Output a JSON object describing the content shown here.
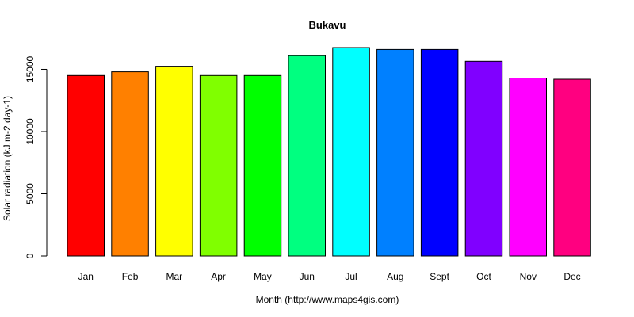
{
  "chart_data": {
    "type": "bar",
    "title": "Bukavu",
    "xlabel": "Month (http://www.maps4gis.com)",
    "ylabel": "Solar radiation (kJ.m-2.day-1)",
    "categories": [
      "Jan",
      "Feb",
      "Mar",
      "Apr",
      "May",
      "Jun",
      "Jul",
      "Aug",
      "Sept",
      "Oct",
      "Nov",
      "Dec"
    ],
    "values": [
      14500,
      14800,
      15250,
      14500,
      14500,
      16100,
      16750,
      16600,
      16600,
      15650,
      14300,
      14200
    ],
    "colors": [
      "#FF0000",
      "#FF8000",
      "#FFFF00",
      "#80FF00",
      "#00FF00",
      "#00FF80",
      "#00FFFF",
      "#0080FF",
      "#0000FF",
      "#8000FF",
      "#FF00FF",
      "#FF0080"
    ],
    "yticks": [
      0,
      5000,
      10000,
      15000
    ],
    "ylim": [
      0,
      16750
    ],
    "grid": false,
    "legend": "none"
  }
}
